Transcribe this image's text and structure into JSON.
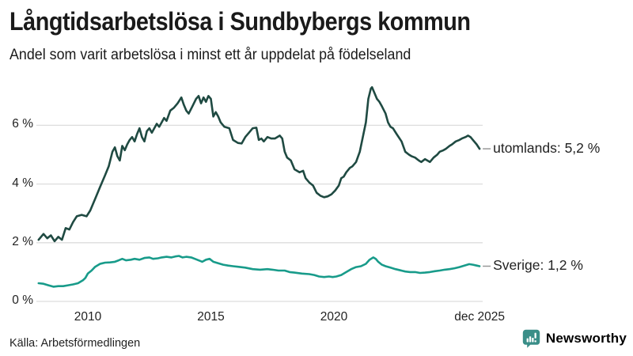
{
  "header": {
    "title": "Långtidsarbetslösa i Sundbybergs kommun",
    "subtitle": "Andel som varit arbetslösa i minst ett år uppdelat på födelseland"
  },
  "footer": {
    "source": "Källa: Arbetsförmedlingen",
    "brand": "Newsworthy"
  },
  "colors": {
    "background": "#ffffff",
    "title_text": "#1a1a1a",
    "axis_text": "#222222",
    "grid": "#dddddd",
    "utomlands": "#1f4a42",
    "sverige": "#189b8a",
    "leader_dash": "#999999",
    "brand_teal": "#3a8e88"
  },
  "axes": {
    "y_ticks": [
      {
        "label": "6 %",
        "value": 6
      },
      {
        "label": "4 %",
        "value": 4
      },
      {
        "label": "2 %",
        "value": 2
      },
      {
        "label": "0 %",
        "value": 0
      }
    ],
    "x_ticks": [
      {
        "label": "2010",
        "year": 2010
      },
      {
        "label": "2015",
        "year": 2015
      },
      {
        "label": "2020",
        "year": 2020
      },
      {
        "label": "dec 2025",
        "year": 2025.92
      }
    ]
  },
  "chart_data": {
    "type": "line",
    "title": "Långtidsarbetslösa i Sundbybergs kommun",
    "subtitle": "Andel som varit arbetslösa i minst ett år uppdelat på födelseland",
    "unit": "%",
    "x_range": [
      2008,
      2025.92
    ],
    "ylim": [
      0,
      7.6
    ],
    "grid": true,
    "legend_position": "line-end-labels",
    "series": [
      {
        "name": "utomlands",
        "end_label": "utomlands: 5,2 %",
        "current_value": "5,2 %",
        "color": "#1f4a42",
        "points": [
          [
            2008.0,
            2.1
          ],
          [
            2008.2,
            2.3
          ],
          [
            2008.35,
            2.15
          ],
          [
            2008.5,
            2.25
          ],
          [
            2008.65,
            2.05
          ],
          [
            2008.8,
            2.2
          ],
          [
            2008.95,
            2.1
          ],
          [
            2009.1,
            2.5
          ],
          [
            2009.25,
            2.45
          ],
          [
            2009.4,
            2.7
          ],
          [
            2009.55,
            2.9
          ],
          [
            2009.75,
            2.95
          ],
          [
            2009.95,
            2.9
          ],
          [
            2010.1,
            3.1
          ],
          [
            2010.3,
            3.5
          ],
          [
            2010.5,
            3.9
          ],
          [
            2010.7,
            4.3
          ],
          [
            2010.85,
            4.6
          ],
          [
            2011.0,
            5.1
          ],
          [
            2011.1,
            5.25
          ],
          [
            2011.2,
            4.95
          ],
          [
            2011.3,
            4.8
          ],
          [
            2011.4,
            5.3
          ],
          [
            2011.5,
            5.15
          ],
          [
            2011.6,
            5.35
          ],
          [
            2011.7,
            5.5
          ],
          [
            2011.8,
            5.6
          ],
          [
            2011.9,
            5.45
          ],
          [
            2012.0,
            5.7
          ],
          [
            2012.1,
            5.9
          ],
          [
            2012.2,
            5.6
          ],
          [
            2012.3,
            5.45
          ],
          [
            2012.4,
            5.8
          ],
          [
            2012.5,
            5.9
          ],
          [
            2012.6,
            5.75
          ],
          [
            2012.7,
            5.9
          ],
          [
            2012.8,
            6.05
          ],
          [
            2012.9,
            5.95
          ],
          [
            2013.0,
            6.1
          ],
          [
            2013.1,
            6.25
          ],
          [
            2013.2,
            6.15
          ],
          [
            2013.35,
            6.5
          ],
          [
            2013.5,
            6.6
          ],
          [
            2013.65,
            6.75
          ],
          [
            2013.8,
            6.95
          ],
          [
            2013.9,
            6.7
          ],
          [
            2014.0,
            6.5
          ],
          [
            2014.1,
            6.4
          ],
          [
            2014.25,
            6.65
          ],
          [
            2014.4,
            6.9
          ],
          [
            2014.5,
            7.0
          ],
          [
            2014.6,
            6.75
          ],
          [
            2014.7,
            6.95
          ],
          [
            2014.8,
            6.8
          ],
          [
            2014.9,
            7.0
          ],
          [
            2015.0,
            6.9
          ],
          [
            2015.1,
            6.3
          ],
          [
            2015.2,
            6.45
          ],
          [
            2015.3,
            6.3
          ],
          [
            2015.4,
            6.1
          ],
          [
            2015.55,
            5.95
          ],
          [
            2015.75,
            5.9
          ],
          [
            2015.9,
            5.5
          ],
          [
            2016.1,
            5.4
          ],
          [
            2016.25,
            5.38
          ],
          [
            2016.4,
            5.6
          ],
          [
            2016.55,
            5.75
          ],
          [
            2016.7,
            5.9
          ],
          [
            2016.85,
            5.92
          ],
          [
            2016.95,
            5.5
          ],
          [
            2017.05,
            5.55
          ],
          [
            2017.15,
            5.45
          ],
          [
            2017.3,
            5.6
          ],
          [
            2017.45,
            5.55
          ],
          [
            2017.6,
            5.55
          ],
          [
            2017.8,
            5.65
          ],
          [
            2017.9,
            5.55
          ],
          [
            2018.0,
            5.1
          ],
          [
            2018.1,
            4.9
          ],
          [
            2018.25,
            4.8
          ],
          [
            2018.4,
            4.5
          ],
          [
            2018.6,
            4.4
          ],
          [
            2018.75,
            4.45
          ],
          [
            2018.85,
            4.2
          ],
          [
            2019.0,
            4.05
          ],
          [
            2019.15,
            3.95
          ],
          [
            2019.3,
            3.7
          ],
          [
            2019.45,
            3.6
          ],
          [
            2019.6,
            3.55
          ],
          [
            2019.75,
            3.58
          ],
          [
            2019.9,
            3.65
          ],
          [
            2020.05,
            3.78
          ],
          [
            2020.2,
            3.95
          ],
          [
            2020.3,
            4.2
          ],
          [
            2020.4,
            4.25
          ],
          [
            2020.5,
            4.4
          ],
          [
            2020.65,
            4.55
          ],
          [
            2020.75,
            4.6
          ],
          [
            2020.9,
            4.75
          ],
          [
            2021.05,
            5.1
          ],
          [
            2021.15,
            5.5
          ],
          [
            2021.3,
            6.1
          ],
          [
            2021.4,
            6.9
          ],
          [
            2021.5,
            7.25
          ],
          [
            2021.55,
            7.3
          ],
          [
            2021.65,
            7.1
          ],
          [
            2021.75,
            6.9
          ],
          [
            2021.85,
            6.8
          ],
          [
            2021.95,
            6.65
          ],
          [
            2022.1,
            6.4
          ],
          [
            2022.2,
            6.1
          ],
          [
            2022.3,
            5.95
          ],
          [
            2022.4,
            5.9
          ],
          [
            2022.55,
            5.7
          ],
          [
            2022.75,
            5.45
          ],
          [
            2022.9,
            5.1
          ],
          [
            2023.05,
            5.0
          ],
          [
            2023.15,
            4.95
          ],
          [
            2023.3,
            4.9
          ],
          [
            2023.45,
            4.8
          ],
          [
            2023.55,
            4.75
          ],
          [
            2023.7,
            4.85
          ],
          [
            2023.9,
            4.75
          ],
          [
            2024.05,
            4.9
          ],
          [
            2024.2,
            5.0
          ],
          [
            2024.3,
            5.1
          ],
          [
            2024.45,
            5.15
          ],
          [
            2024.55,
            5.2
          ],
          [
            2024.7,
            5.3
          ],
          [
            2024.8,
            5.35
          ],
          [
            2024.95,
            5.45
          ],
          [
            2025.1,
            5.5
          ],
          [
            2025.2,
            5.55
          ],
          [
            2025.35,
            5.6
          ],
          [
            2025.45,
            5.65
          ],
          [
            2025.55,
            5.6
          ],
          [
            2025.65,
            5.5
          ],
          [
            2025.8,
            5.35
          ],
          [
            2025.92,
            5.2
          ]
        ]
      },
      {
        "name": "Sverige",
        "end_label": "Sverige: 1,2 %",
        "current_value": "1,2 %",
        "color": "#189b8a",
        "points": [
          [
            2008.0,
            0.62
          ],
          [
            2008.2,
            0.6
          ],
          [
            2008.4,
            0.55
          ],
          [
            2008.6,
            0.5
          ],
          [
            2008.8,
            0.52
          ],
          [
            2009.0,
            0.52
          ],
          [
            2009.2,
            0.55
          ],
          [
            2009.4,
            0.58
          ],
          [
            2009.6,
            0.62
          ],
          [
            2009.8,
            0.72
          ],
          [
            2009.9,
            0.8
          ],
          [
            2010.0,
            0.95
          ],
          [
            2010.15,
            1.05
          ],
          [
            2010.3,
            1.18
          ],
          [
            2010.5,
            1.28
          ],
          [
            2010.7,
            1.32
          ],
          [
            2010.9,
            1.33
          ],
          [
            2011.1,
            1.35
          ],
          [
            2011.25,
            1.4
          ],
          [
            2011.4,
            1.45
          ],
          [
            2011.55,
            1.4
          ],
          [
            2011.75,
            1.42
          ],
          [
            2011.9,
            1.45
          ],
          [
            2012.1,
            1.42
          ],
          [
            2012.3,
            1.48
          ],
          [
            2012.5,
            1.5
          ],
          [
            2012.65,
            1.45
          ],
          [
            2012.85,
            1.47
          ],
          [
            2013.0,
            1.5
          ],
          [
            2013.2,
            1.52
          ],
          [
            2013.4,
            1.5
          ],
          [
            2013.55,
            1.53
          ],
          [
            2013.7,
            1.55
          ],
          [
            2013.85,
            1.5
          ],
          [
            2014.0,
            1.52
          ],
          [
            2014.2,
            1.5
          ],
          [
            2014.35,
            1.45
          ],
          [
            2014.5,
            1.4
          ],
          [
            2014.65,
            1.35
          ],
          [
            2014.8,
            1.42
          ],
          [
            2014.95,
            1.45
          ],
          [
            2015.1,
            1.35
          ],
          [
            2015.3,
            1.3
          ],
          [
            2015.5,
            1.25
          ],
          [
            2015.7,
            1.22
          ],
          [
            2015.9,
            1.2
          ],
          [
            2016.1,
            1.18
          ],
          [
            2016.4,
            1.15
          ],
          [
            2016.7,
            1.1
          ],
          [
            2017.0,
            1.08
          ],
          [
            2017.3,
            1.1
          ],
          [
            2017.5,
            1.08
          ],
          [
            2017.75,
            1.05
          ],
          [
            2018.0,
            1.05
          ],
          [
            2018.2,
            1.0
          ],
          [
            2018.4,
            0.98
          ],
          [
            2018.7,
            0.95
          ],
          [
            2019.0,
            0.93
          ],
          [
            2019.2,
            0.9
          ],
          [
            2019.4,
            0.85
          ],
          [
            2019.6,
            0.83
          ],
          [
            2019.8,
            0.85
          ],
          [
            2019.95,
            0.83
          ],
          [
            2020.1,
            0.85
          ],
          [
            2020.3,
            0.9
          ],
          [
            2020.5,
            1.0
          ],
          [
            2020.7,
            1.1
          ],
          [
            2020.9,
            1.17
          ],
          [
            2021.1,
            1.2
          ],
          [
            2021.3,
            1.28
          ],
          [
            2021.45,
            1.42
          ],
          [
            2021.6,
            1.5
          ],
          [
            2021.7,
            1.45
          ],
          [
            2021.8,
            1.35
          ],
          [
            2021.95,
            1.25
          ],
          [
            2022.1,
            1.2
          ],
          [
            2022.3,
            1.15
          ],
          [
            2022.5,
            1.1
          ],
          [
            2022.7,
            1.06
          ],
          [
            2022.9,
            1.02
          ],
          [
            2023.1,
            1.0
          ],
          [
            2023.3,
            1.0
          ],
          [
            2023.5,
            0.97
          ],
          [
            2023.7,
            0.98
          ],
          [
            2023.9,
            1.0
          ],
          [
            2024.1,
            1.03
          ],
          [
            2024.3,
            1.05
          ],
          [
            2024.5,
            1.08
          ],
          [
            2024.7,
            1.1
          ],
          [
            2024.9,
            1.13
          ],
          [
            2025.1,
            1.17
          ],
          [
            2025.3,
            1.22
          ],
          [
            2025.5,
            1.27
          ],
          [
            2025.65,
            1.25
          ],
          [
            2025.8,
            1.22
          ],
          [
            2025.92,
            1.2
          ]
        ]
      }
    ]
  }
}
